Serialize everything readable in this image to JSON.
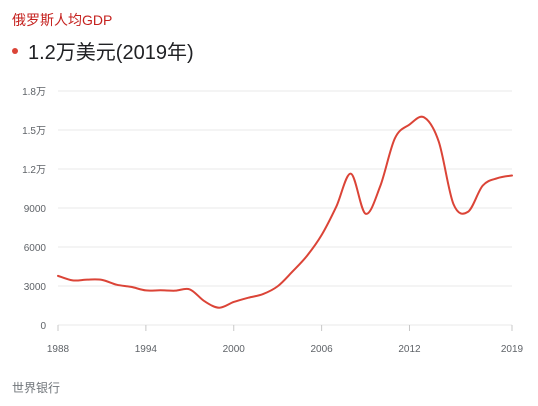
{
  "header": {
    "title": "俄罗斯人均GDP",
    "current_value": "1.2万美元(2019年)"
  },
  "source": "世界银行",
  "colors": {
    "title": "#c5221f",
    "line": "#db4437",
    "dot": "#db4437",
    "grid": "#e8e8e8"
  },
  "chart_data": {
    "type": "line",
    "title": "",
    "xlabel": "",
    "ylabel": "",
    "xlim": [
      1988,
      2019
    ],
    "ylim": [
      0,
      18000
    ],
    "x_ticks": [
      {
        "value": 1988,
        "label": "1988"
      },
      {
        "value": 1994,
        "label": "1994"
      },
      {
        "value": 2000,
        "label": "2000"
      },
      {
        "value": 2006,
        "label": "2006"
      },
      {
        "value": 2012,
        "label": "2012"
      },
      {
        "value": 2019,
        "label": "2019"
      }
    ],
    "y_ticks": [
      {
        "value": 0,
        "label": "0"
      },
      {
        "value": 3000,
        "label": "3000"
      },
      {
        "value": 6000,
        "label": "6000"
      },
      {
        "value": 9000,
        "label": "9000"
      },
      {
        "value": 12000,
        "label": "1.2万"
      },
      {
        "value": 15000,
        "label": "1.5万"
      },
      {
        "value": 18000,
        "label": "1.8万"
      }
    ],
    "grid": true,
    "legend": "none",
    "series": [
      {
        "x": [
          1988,
          1989,
          1990,
          1991,
          1992,
          1993,
          1994,
          1995,
          1996,
          1997,
          1998,
          1999,
          2000,
          2001,
          2002,
          2003,
          2004,
          2005,
          2006,
          2007,
          2008,
          2009,
          2010,
          2011,
          2012,
          2013,
          2014,
          2015,
          2016,
          2017,
          2018,
          2019
        ],
        "y": [
          3780,
          3430,
          3490,
          3470,
          3100,
          2930,
          2660,
          2670,
          2640,
          2740,
          1830,
          1330,
          1770,
          2100,
          2380,
          2980,
          4100,
          5320,
          6920,
          9100,
          11640,
          8560,
          10670,
          14350,
          15420,
          15970,
          14100,
          9310,
          8710,
          10720,
          11290,
          11500
        ]
      }
    ]
  }
}
